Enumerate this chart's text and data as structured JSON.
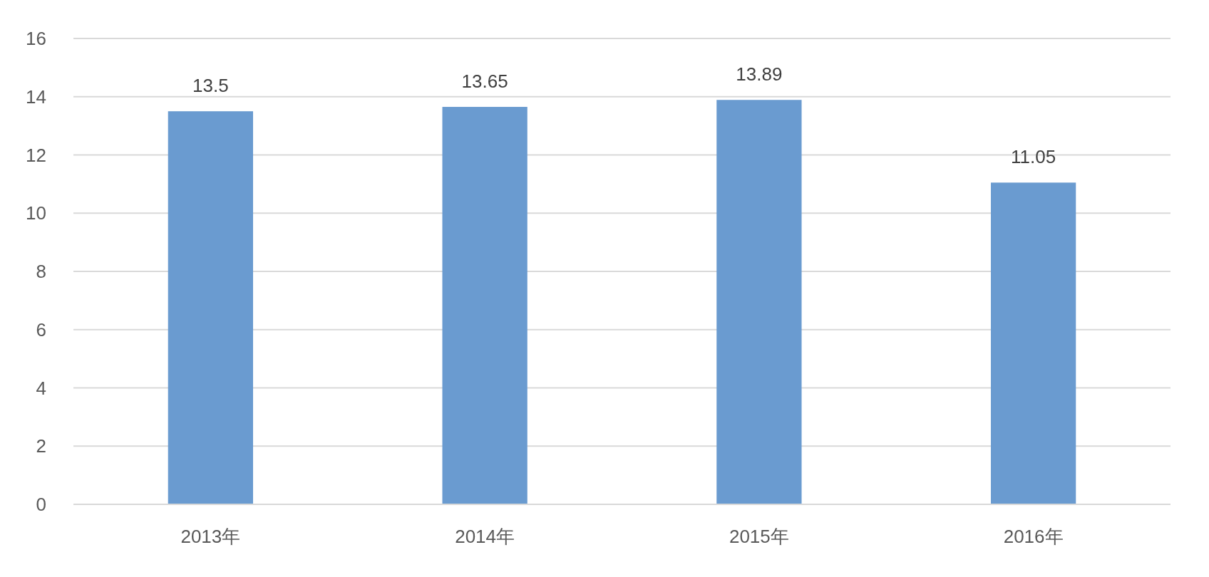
{
  "chart_data": {
    "type": "bar",
    "categories": [
      "2013年",
      "2014年",
      "2015年",
      "2016年"
    ],
    "values": [
      13.5,
      13.65,
      13.89,
      11.05
    ],
    "color": "#6a9bd0",
    "ylim": [
      0,
      16
    ],
    "yticks": [
      0,
      2,
      4,
      6,
      8,
      10,
      12,
      14,
      16
    ],
    "grid": "y",
    "data_labels": true
  }
}
